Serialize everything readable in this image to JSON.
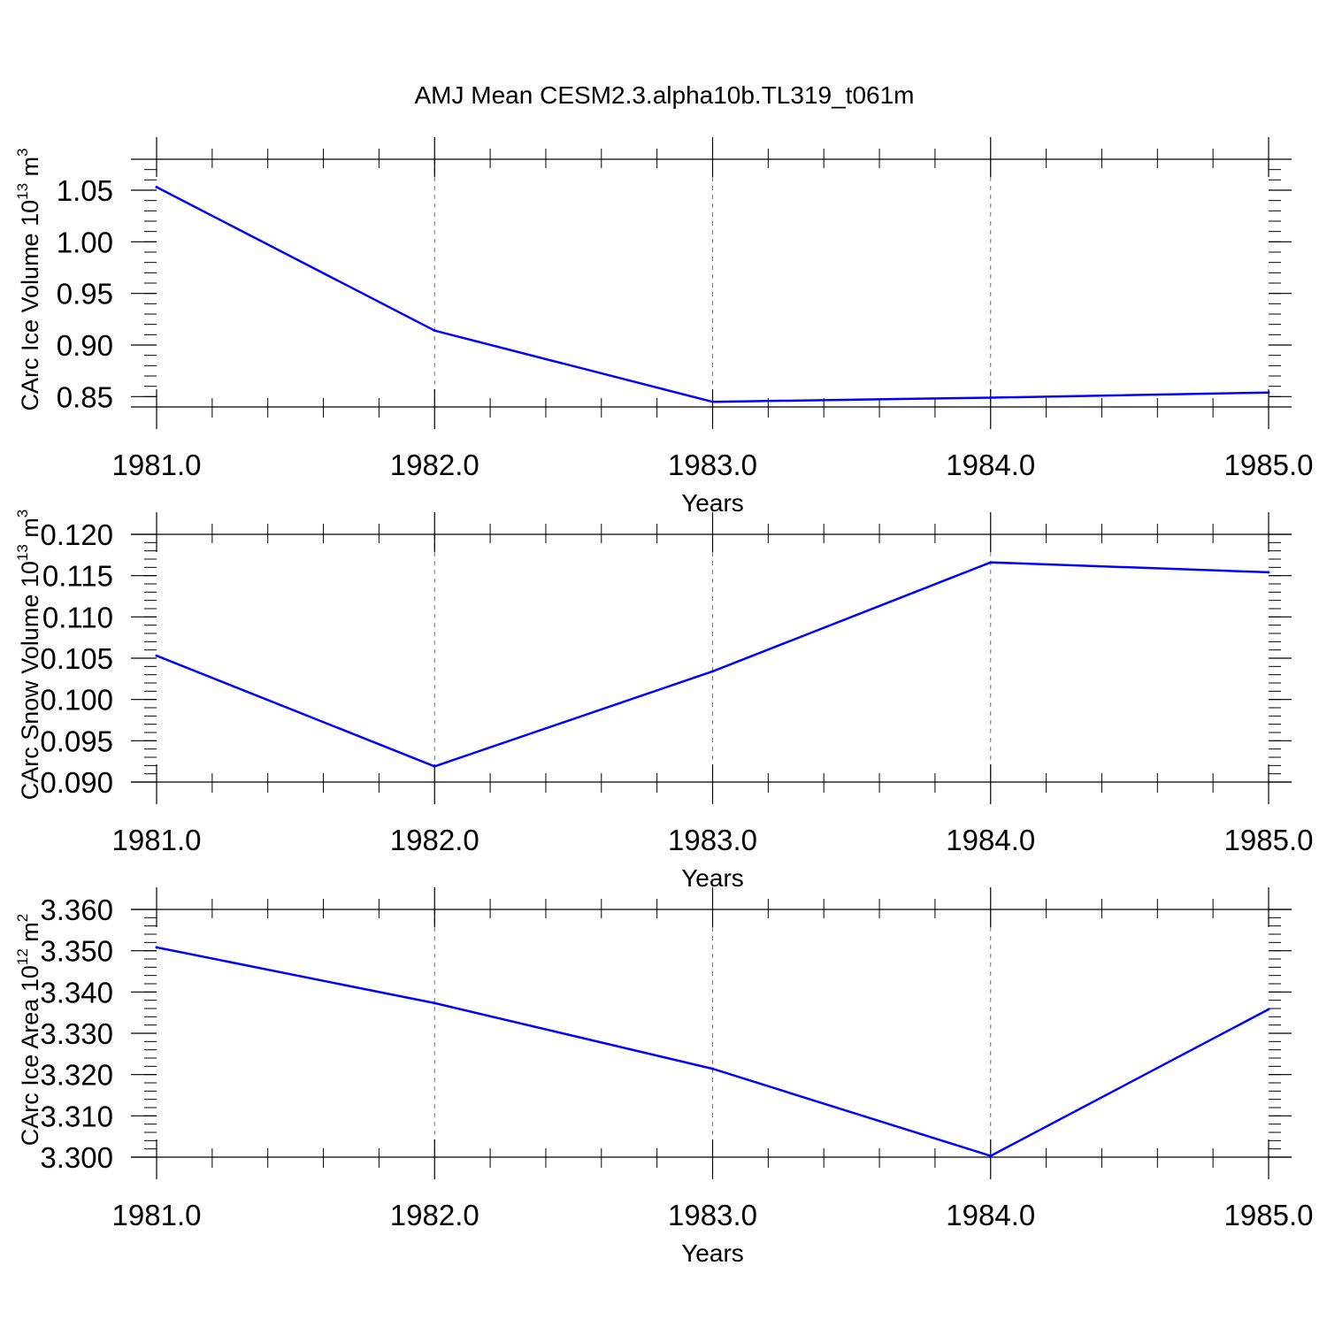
{
  "title": "AMJ Mean CESM2.3.alpha10b.TL319_t061m",
  "line_color": "#0000ff",
  "chart_data": [
    {
      "type": "line",
      "xlabel": "Years",
      "ylabel": {
        "text": "CArc Ice Volume 10",
        "sup": "13",
        "unit": " m",
        "unit_sup": "3"
      },
      "x": [
        1981,
        1982,
        1983,
        1984,
        1985
      ],
      "values": [
        1.053,
        0.914,
        0.845,
        0.849,
        0.854
      ],
      "xlim": [
        1981,
        1985
      ],
      "ylim": [
        0.84,
        1.08
      ],
      "xticks": [
        1981,
        1982,
        1983,
        1984,
        1985
      ],
      "xtick_labels": [
        "1981.0",
        "1982.0",
        "1983.0",
        "1984.0",
        "1985.0"
      ],
      "yticks": [
        0.85,
        0.9,
        0.95,
        1.0,
        1.05
      ],
      "ytick_labels": [
        "0.85",
        "0.90",
        "0.95",
        "1.00",
        "1.05"
      ],
      "y_minor_step": 0.01,
      "grid": "x-dashed"
    },
    {
      "type": "line",
      "xlabel": "Years",
      "ylabel": {
        "text": "CArc Snow Volume 10",
        "sup": "13",
        "unit": " m",
        "unit_sup": "3"
      },
      "x": [
        1981,
        1982,
        1983,
        1984,
        1985
      ],
      "values": [
        0.1053,
        0.0919,
        0.1034,
        0.1166,
        0.1154
      ],
      "xlim": [
        1981,
        1985
      ],
      "ylim": [
        0.09,
        0.12
      ],
      "xticks": [
        1981,
        1982,
        1983,
        1984,
        1985
      ],
      "xtick_labels": [
        "1981.0",
        "1982.0",
        "1983.0",
        "1984.0",
        "1985.0"
      ],
      "yticks": [
        0.09,
        0.095,
        0.1,
        0.105,
        0.11,
        0.115,
        0.12
      ],
      "ytick_labels": [
        "0.090",
        "0.095",
        "0.100",
        "0.105",
        "0.110",
        "0.115",
        "0.120"
      ],
      "y_minor_step": 0.001,
      "grid": "x-dashed"
    },
    {
      "type": "line",
      "xlabel": "Years",
      "ylabel": {
        "text": "CArc Ice Area 10",
        "sup": "12",
        "unit": " m",
        "unit_sup": "2"
      },
      "x": [
        1981,
        1982,
        1983,
        1984,
        1985
      ],
      "values": [
        3.3508,
        3.3373,
        3.3214,
        3.3003,
        3.3358
      ],
      "xlim": [
        1981,
        1985
      ],
      "ylim": [
        3.3,
        3.36
      ],
      "xticks": [
        1981,
        1982,
        1983,
        1984,
        1985
      ],
      "xtick_labels": [
        "1981.0",
        "1982.0",
        "1983.0",
        "1984.0",
        "1985.0"
      ],
      "yticks": [
        3.3,
        3.31,
        3.32,
        3.33,
        3.34,
        3.35,
        3.36
      ],
      "ytick_labels": [
        "3.300",
        "3.310",
        "3.320",
        "3.330",
        "3.340",
        "3.350",
        "3.360"
      ],
      "y_minor_step": 0.002,
      "grid": "x-dashed"
    }
  ]
}
